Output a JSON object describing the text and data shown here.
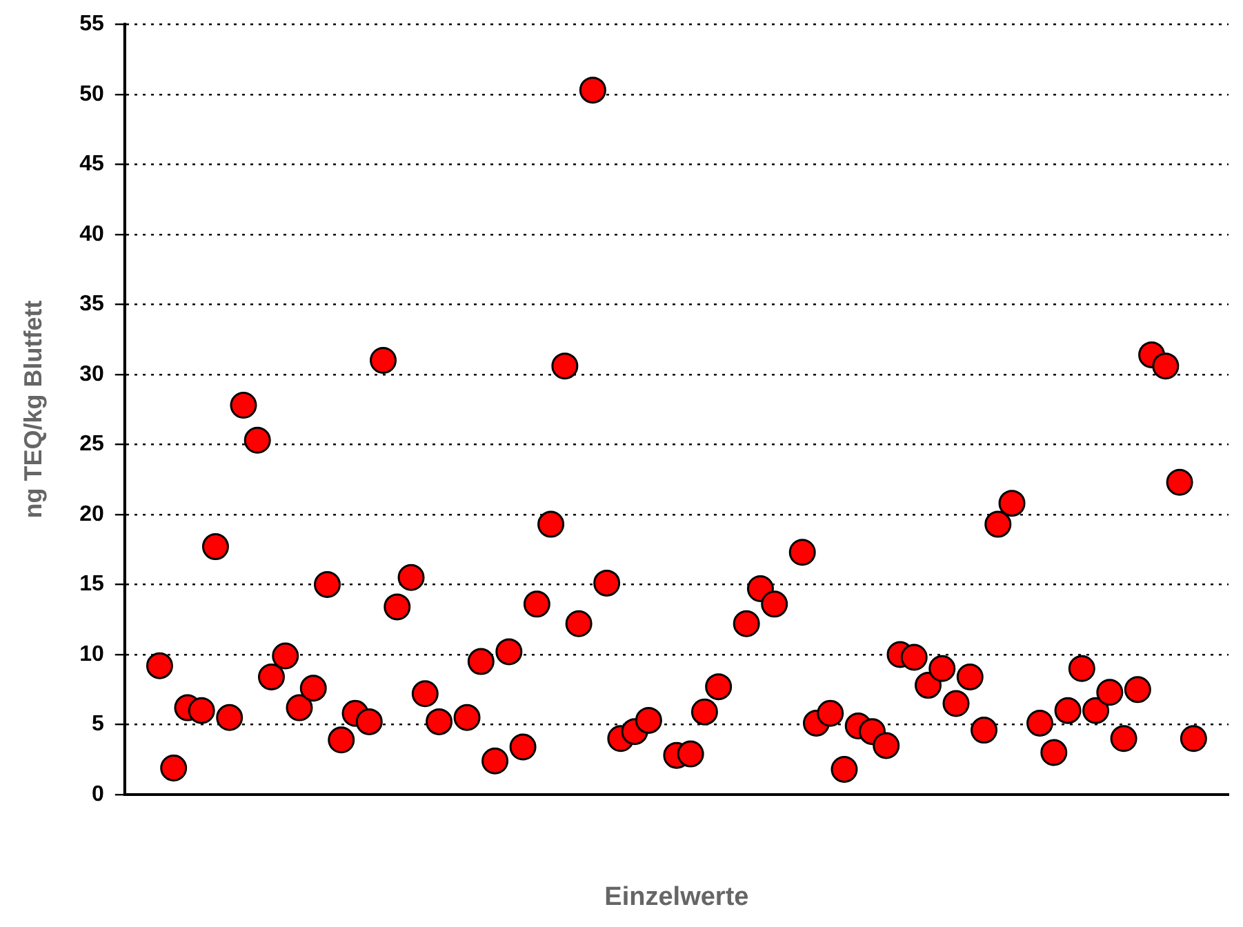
{
  "chart_data": {
    "type": "scatter",
    "xlabel": "Einzelwerte",
    "ylabel": "ng TEQ/kg Blutfett",
    "categories": [
      null,
      null,
      null,
      null,
      null,
      null,
      null,
      null,
      null,
      null,
      null,
      null,
      null,
      null,
      null,
      null,
      null,
      null,
      null,
      null,
      null,
      null,
      null,
      null,
      null,
      null,
      null,
      null,
      null,
      null,
      null,
      null,
      null,
      null,
      null,
      null,
      null,
      null,
      null,
      null,
      null,
      null,
      null,
      null,
      null,
      null,
      null,
      null,
      null,
      null,
      null,
      null,
      null,
      null,
      null,
      null,
      null,
      null,
      null,
      null,
      null,
      null,
      null,
      null,
      null,
      null,
      null,
      null,
      null,
      null,
      null,
      null,
      null,
      null,
      null,
      null,
      null,
      null,
      null
    ],
    "series": [
      {
        "color": "#ff0000",
        "values": [
          null,
          null,
          9.2,
          1.9,
          6.2,
          6.0,
          17.7,
          5.5,
          27.8,
          25.3,
          8.4,
          9.9,
          6.2,
          7.6,
          15.0,
          3.9,
          5.8,
          5.2,
          31.0,
          13.4,
          15.5,
          7.2,
          5.2,
          null,
          5.5,
          9.5,
          2.4,
          10.2,
          3.4,
          13.6,
          19.3,
          30.6,
          12.2,
          50.3,
          15.1,
          4.0,
          4.5,
          5.3,
          null,
          2.8,
          2.9,
          5.9,
          7.7,
          null,
          12.2,
          14.7,
          13.6,
          null,
          17.3,
          5.1,
          5.8,
          1.8,
          4.9,
          4.5,
          3.5,
          10.0,
          9.8,
          7.8,
          9.0,
          6.5,
          8.4,
          4.6,
          19.3,
          20.8,
          null,
          5.1,
          3.0,
          6.0,
          9.0,
          6.0,
          7.3,
          4.0,
          7.5,
          31.4,
          30.6,
          22.3,
          4.0,
          null,
          null
        ]
      }
    ],
    "ylim": [
      0,
      55
    ],
    "yticks": [
      0,
      5,
      10,
      15,
      20,
      25,
      30,
      35,
      40,
      45,
      50,
      55
    ],
    "grid": "y",
    "marker": "circle",
    "legend": false
  }
}
